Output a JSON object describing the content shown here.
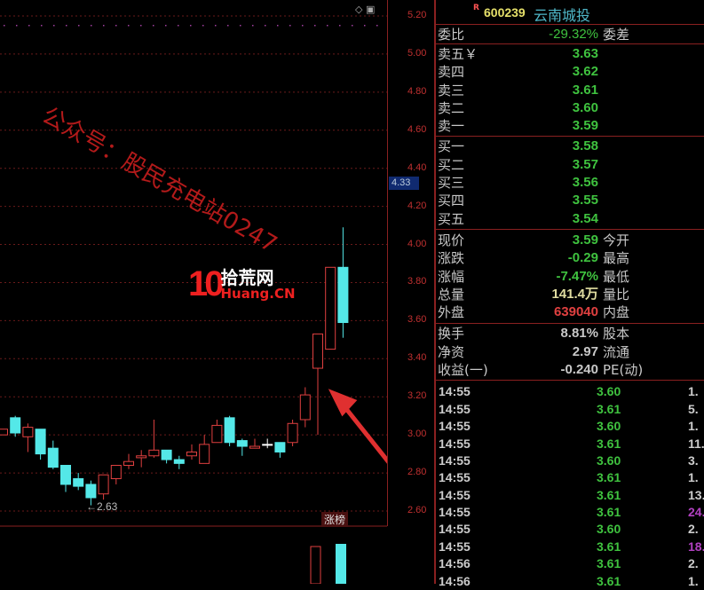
{
  "stock": {
    "flag": "R",
    "code": "600239",
    "name": "云南城投"
  },
  "chart": {
    "type": "candlestick",
    "y_ticks": [
      "5.20",
      "5.00",
      "4.80",
      "4.60",
      "4.40",
      "4.20",
      "4.00",
      "3.80",
      "3.60",
      "3.40",
      "3.20",
      "3.00",
      "2.80",
      "2.60"
    ],
    "ylim": [
      2.6,
      5.2
    ],
    "current_price_marker": "4.33",
    "low_label": "←2.63",
    "badge": "涨榜",
    "colors": {
      "up": "#e04040",
      "down": "#54e8e8",
      "grid": "#6a1a1a"
    },
    "candles": [
      [
        3.0,
        3.03,
        3.0,
        3.03
      ],
      [
        3.09,
        3.1,
        2.99,
        3.01
      ],
      [
        2.99,
        3.06,
        2.91,
        3.04
      ],
      [
        3.03,
        3.03,
        2.87,
        2.9
      ],
      [
        2.93,
        2.97,
        2.82,
        2.83
      ],
      [
        2.84,
        2.84,
        2.7,
        2.74
      ],
      [
        2.77,
        2.8,
        2.71,
        2.73
      ],
      [
        2.74,
        2.76,
        2.63,
        2.67
      ],
      [
        2.69,
        2.79,
        2.66,
        2.79
      ],
      [
        2.77,
        2.84,
        2.74,
        2.84
      ],
      [
        2.84,
        2.9,
        2.82,
        2.86
      ],
      [
        2.88,
        2.92,
        2.83,
        2.89
      ],
      [
        2.89,
        3.08,
        2.88,
        2.92
      ],
      [
        2.92,
        2.92,
        2.85,
        2.87
      ],
      [
        2.87,
        2.89,
        2.82,
        2.85
      ],
      [
        2.89,
        2.95,
        2.87,
        2.91
      ],
      [
        2.85,
        3.0,
        2.85,
        2.95
      ],
      [
        2.96,
        3.08,
        2.96,
        3.05
      ],
      [
        3.09,
        3.1,
        2.94,
        2.96
      ],
      [
        2.97,
        2.98,
        2.89,
        2.94
      ],
      [
        2.93,
        2.98,
        2.93,
        2.94
      ],
      [
        2.95,
        2.98,
        2.93,
        2.95
      ],
      [
        2.96,
        2.96,
        2.88,
        2.91
      ],
      [
        2.96,
        3.08,
        2.94,
        3.06
      ],
      [
        3.08,
        3.25,
        3.04,
        3.21
      ],
      [
        3.35,
        3.53,
        3.0,
        3.53
      ],
      [
        3.45,
        3.88,
        3.45,
        3.88
      ],
      [
        3.88,
        4.09,
        3.51,
        3.59
      ]
    ]
  },
  "watermark": {
    "logo_number": "10",
    "logo_cn": "拾荒网",
    "logo_en": "Huang.CN",
    "handwritten": "公众号：股民充电站0247"
  },
  "order": {
    "ratio": {
      "label": "委比",
      "value": "-29.32%",
      "label2": "委差"
    },
    "asks": [
      {
        "label": "卖五￥",
        "price": "3.63"
      },
      {
        "label": "卖四",
        "price": "3.62"
      },
      {
        "label": "卖三",
        "price": "3.61"
      },
      {
        "label": "卖二",
        "price": "3.60"
      },
      {
        "label": "卖一",
        "price": "3.59"
      }
    ],
    "bids": [
      {
        "label": "买一",
        "price": "3.58"
      },
      {
        "label": "买二",
        "price": "3.57"
      },
      {
        "label": "买三",
        "price": "3.56"
      },
      {
        "label": "买四",
        "price": "3.55"
      },
      {
        "label": "买五",
        "price": "3.54"
      }
    ]
  },
  "quote": [
    {
      "label": "现价",
      "value": "3.59",
      "label2": "今开",
      "cls": "g"
    },
    {
      "label": "涨跌",
      "value": "-0.29",
      "label2": "最高",
      "cls": "g"
    },
    {
      "label": "涨幅",
      "value": "-7.47%",
      "label2": "最低",
      "cls": "g"
    },
    {
      "label": "总量",
      "value": "141.4万",
      "label2": "量比",
      "cls": "y"
    },
    {
      "label": "外盘",
      "value": "639040",
      "label2": "内盘",
      "cls": "red"
    }
  ],
  "fund": [
    {
      "label": "换手",
      "value": "8.81%",
      "label2": "股本"
    },
    {
      "label": "净资",
      "value": "2.97",
      "label2": "流通"
    },
    {
      "label": "收益(一)",
      "value": "-0.240",
      "label2": "PE(动)"
    }
  ],
  "ticks": [
    {
      "time": "14:55",
      "price": "3.60",
      "vol": "1."
    },
    {
      "time": "14:55",
      "price": "3.61",
      "vol": "5."
    },
    {
      "time": "14:55",
      "price": "3.60",
      "vol": "1."
    },
    {
      "time": "14:55",
      "price": "3.61",
      "vol": "11."
    },
    {
      "time": "14:55",
      "price": "3.60",
      "vol": "3."
    },
    {
      "time": "14:55",
      "price": "3.61",
      "vol": "1."
    },
    {
      "time": "14:55",
      "price": "3.61",
      "vol": "13."
    },
    {
      "time": "14:55",
      "price": "3.61",
      "vol": "24.",
      "purple": true
    },
    {
      "time": "14:55",
      "price": "3.60",
      "vol": "2."
    },
    {
      "time": "14:55",
      "price": "3.61",
      "vol": "18.",
      "purple": true
    },
    {
      "time": "14:56",
      "price": "3.61",
      "vol": "2."
    },
    {
      "time": "14:56",
      "price": "3.61",
      "vol": "1."
    }
  ]
}
